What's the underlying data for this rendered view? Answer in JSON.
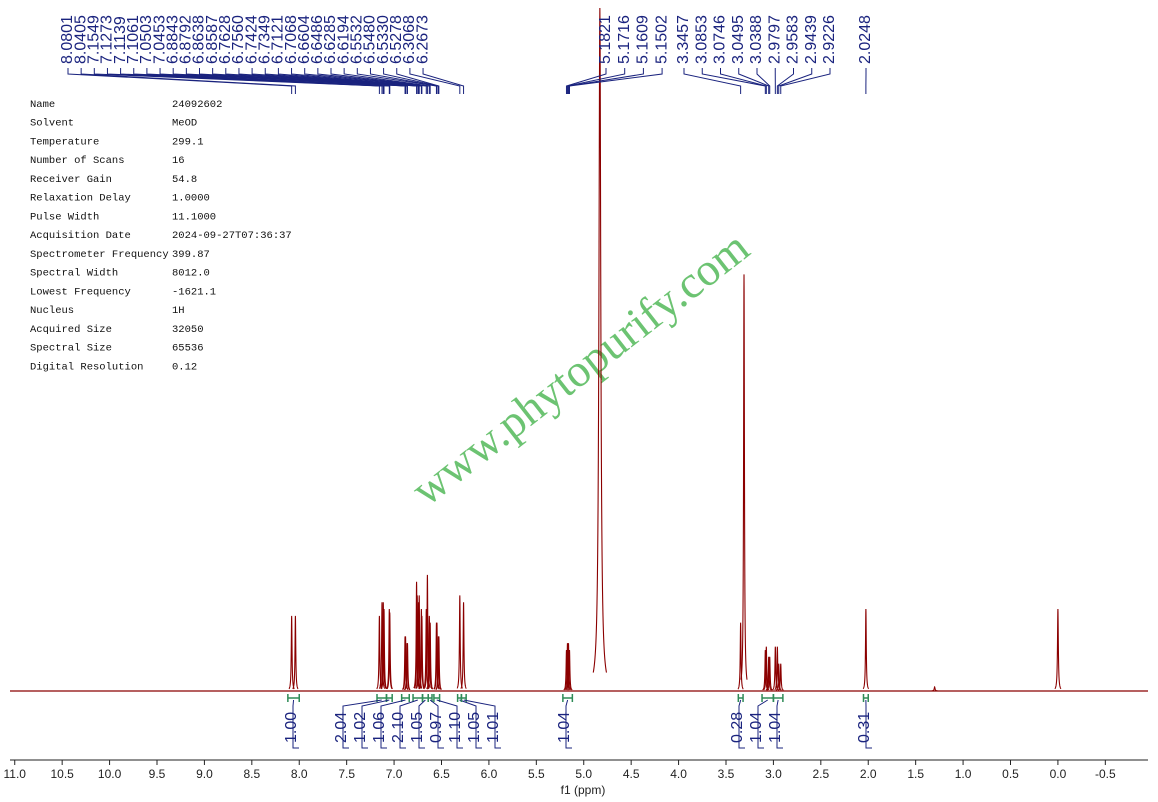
{
  "chart_data": {
    "type": "nmr",
    "xlabel": "f1 (ppm)",
    "xlim": [
      11.05,
      -0.95
    ],
    "ylim": [
      0,
      100
    ],
    "xticks": [
      {
        "value": 11,
        "label": "11.0"
      },
      10.5,
      {
        "value": 10,
        "label": "10.0"
      },
      9.5,
      {
        "value": 9,
        "label": "9.0"
      },
      8.5,
      {
        "value": 8,
        "label": "8.0"
      },
      7.5,
      {
        "value": 7,
        "label": "7.0"
      },
      6.5,
      {
        "value": 6,
        "label": "6.0"
      },
      5.5,
      {
        "value": 5,
        "label": "5.0"
      },
      4.5,
      {
        "value": 4,
        "label": "4.0"
      },
      3.5,
      {
        "value": 3,
        "label": "3.0"
      },
      2.5,
      {
        "value": 2,
        "label": "2.0"
      },
      1.5,
      {
        "value": 1,
        "label": "1.0"
      },
      0.5,
      {
        "value": 0,
        "label": "0.0"
      },
      -0.5
    ],
    "color": "#8b0000",
    "peak_label_color": "#1a237e",
    "integral_color": "#2e8b57",
    "peaks": {
      "x": [
        8.0801,
        8.0405,
        7.1549,
        7.1273,
        7.1139,
        7.1061,
        7.0503,
        7.0453,
        6.8843,
        6.8792,
        6.8638,
        6.8587,
        6.7628,
        {
          "value": 6.756,
          "label": "6.7560"
        },
        6.7424,
        6.7349,
        6.7121,
        6.7068,
        6.6604,
        6.6486,
        6.6285,
        6.6194,
        6.5532,
        {
          "value": 6.548,
          "label": "6.5480"
        },
        {
          "value": 6.533,
          "label": "6.5330"
        },
        6.5278,
        6.3068,
        6.2673,
        5.1821,
        5.1716,
        5.1609,
        5.1502,
        3.3457,
        3.0853,
        3.0746,
        3.0495,
        3.0388,
        2.9797,
        2.9583,
        2.9439,
        2.9226,
        2.0248
      ],
      "values": [
        11,
        11,
        11,
        13,
        13,
        12,
        12,
        11.5,
        8,
        8,
        7,
        7,
        16,
        14,
        13,
        14,
        12,
        11,
        12,
        17,
        11,
        10,
        10,
        10,
        8,
        8,
        14,
        13,
        6,
        7,
        7,
        6,
        10,
        6,
        6.5,
        5,
        5,
        6.5,
        6.5,
        4,
        4,
        12
      ]
    },
    "other_peaks": {
      "x": [
        4.83,
        3.31,
        0,
        1.3
      ],
      "values": [
        100,
        61,
        12,
        0.6
      ]
    },
    "integrals": {
      "values": [
        1,
        2.04,
        1.02,
        1.06,
        2.1,
        1.05,
        0.97,
        1.1,
        1.05,
        1.01,
        1.04,
        0.28,
        1.04,
        1.04,
        0.31
      ],
      "value_labels": [
        "1.00",
        "2.04",
        "1.02",
        "1.06",
        "2.10",
        "1.05",
        "0.97",
        "1.10",
        "1.05",
        "1.01",
        "1.04",
        "0.28",
        "1.04",
        "1.04",
        "0.31"
      ],
      "ranges": [
        [
          8.12,
          8.0
        ],
        [
          7.18,
          7.08
        ],
        [
          7.08,
          7.02
        ],
        [
          6.92,
          6.84
        ],
        [
          6.8,
          6.7
        ],
        [
          6.7,
          6.64
        ],
        [
          6.64,
          6.6
        ],
        [
          6.58,
          6.52
        ],
        [
          6.33,
          6.29
        ],
        [
          6.29,
          6.24
        ],
        [
          5.22,
          5.12
        ],
        [
          3.37,
          3.32
        ],
        [
          3.12,
          3.0
        ],
        [
          3.0,
          2.9
        ],
        [
          2.05,
          2.0
        ]
      ]
    }
  },
  "parameters": {
    "rows": [
      [
        "Name",
        "24092602"
      ],
      [
        "Solvent",
        "MeOD"
      ],
      [
        "Temperature",
        "299.1"
      ],
      [
        "Number of Scans",
        "16"
      ],
      [
        "Receiver Gain",
        "54.8"
      ],
      [
        "Relaxation Delay",
        "1.0000"
      ],
      [
        "Pulse Width",
        "11.1000"
      ],
      [
        "Acquisition Date",
        "2024-09-27T07:36:37"
      ],
      [
        "Spectrometer Frequency",
        "399.87"
      ],
      [
        "Spectral Width",
        "8012.0"
      ],
      [
        "Lowest Frequency",
        "-1621.1"
      ],
      [
        "Nucleus",
        "1H"
      ],
      [
        "Acquired Size",
        "32050"
      ],
      [
        "Spectral Size",
        "65536"
      ],
      [
        "Digital Resolution",
        "0.12"
      ]
    ]
  },
  "watermark": "www.phytopurify.com"
}
